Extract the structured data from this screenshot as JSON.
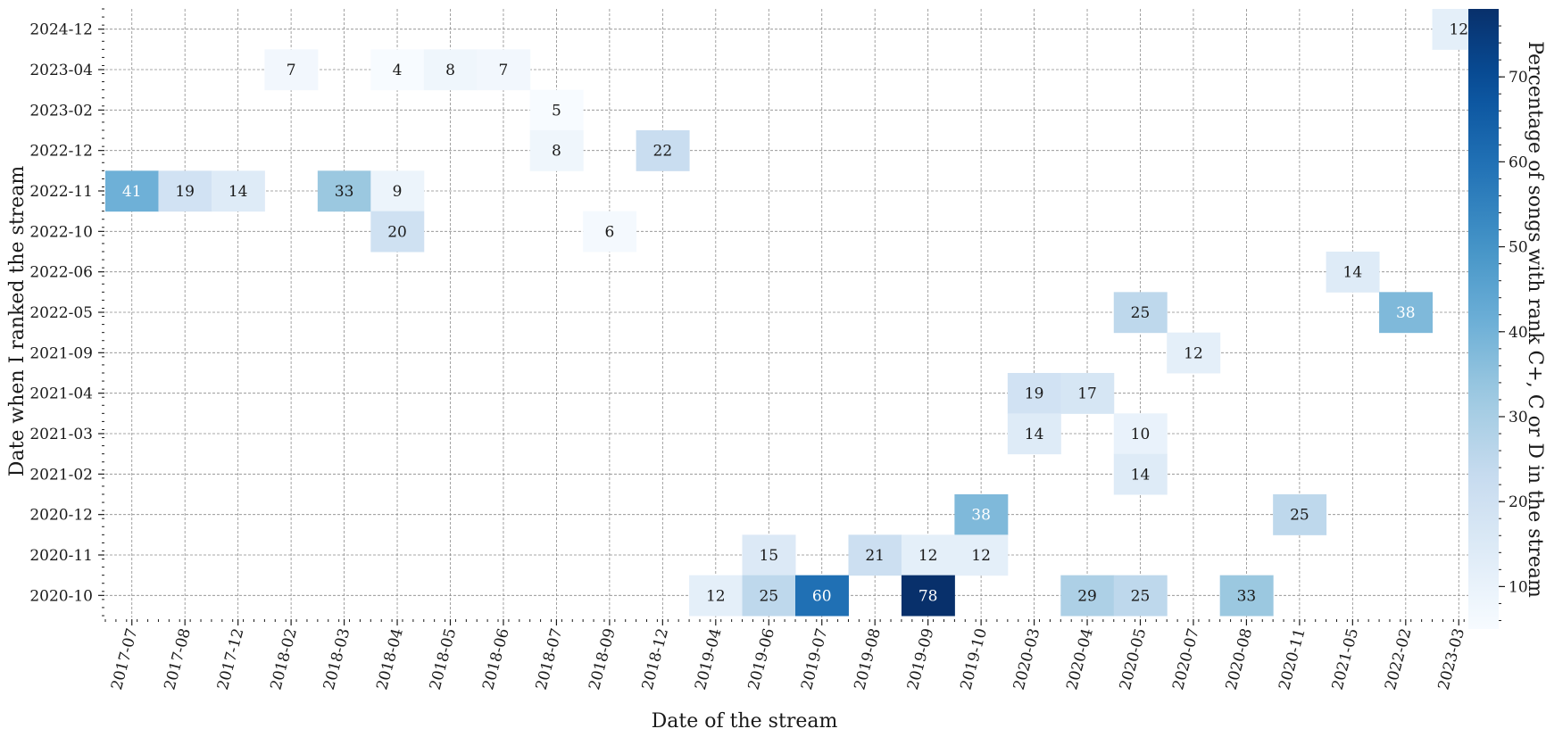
{
  "chart_data": {
    "type": "heatmap",
    "xlabel": "Date of the stream",
    "ylabel": "Date when I ranked the stream",
    "colorbar_label": "Percentage of songs with rank C+, C or D in the stream",
    "colorbar_ticks": [
      10,
      20,
      30,
      40,
      50,
      60,
      70
    ],
    "colorbar_range": [
      5,
      78
    ],
    "colormap": "Blues",
    "grid": true,
    "x_categories": [
      "2017-07",
      "2017-08",
      "2017-12",
      "2018-02",
      "2018-03",
      "2018-04",
      "2018-05",
      "2018-06",
      "2018-07",
      "2018-09",
      "2018-12",
      "2019-04",
      "2019-06",
      "2019-07",
      "2019-08",
      "2019-09",
      "2019-10",
      "2020-03",
      "2020-04",
      "2020-05",
      "2020-07",
      "2020-08",
      "2020-11",
      "2021-05",
      "2022-02",
      "2023-03"
    ],
    "y_categories": [
      "2024-12",
      "2023-04",
      "2023-02",
      "2022-12",
      "2022-11",
      "2022-10",
      "2022-06",
      "2022-05",
      "2021-09",
      "2021-04",
      "2021-03",
      "2021-02",
      "2020-12",
      "2020-11",
      "2020-10"
    ],
    "cells": [
      {
        "y": "2024-12",
        "x": "2023-03",
        "value": 12
      },
      {
        "y": "2023-04",
        "x": "2018-02",
        "value": 7
      },
      {
        "y": "2023-04",
        "x": "2018-04",
        "value": 4
      },
      {
        "y": "2023-04",
        "x": "2018-05",
        "value": 8
      },
      {
        "y": "2023-04",
        "x": "2018-06",
        "value": 7
      },
      {
        "y": "2023-02",
        "x": "2018-07",
        "value": 5
      },
      {
        "y": "2022-12",
        "x": "2018-07",
        "value": 8
      },
      {
        "y": "2022-12",
        "x": "2018-12",
        "value": 22
      },
      {
        "y": "2022-11",
        "x": "2017-07",
        "value": 41
      },
      {
        "y": "2022-11",
        "x": "2017-08",
        "value": 19
      },
      {
        "y": "2022-11",
        "x": "2017-12",
        "value": 14
      },
      {
        "y": "2022-11",
        "x": "2018-03",
        "value": 33
      },
      {
        "y": "2022-11",
        "x": "2018-04",
        "value": 9
      },
      {
        "y": "2022-10",
        "x": "2018-04",
        "value": 20
      },
      {
        "y": "2022-10",
        "x": "2018-09",
        "value": 6
      },
      {
        "y": "2022-06",
        "x": "2021-05",
        "value": 14
      },
      {
        "y": "2022-05",
        "x": "2020-05",
        "value": 25
      },
      {
        "y": "2022-05",
        "x": "2022-02",
        "value": 38
      },
      {
        "y": "2021-09",
        "x": "2020-07",
        "value": 12
      },
      {
        "y": "2021-04",
        "x": "2020-03",
        "value": 19
      },
      {
        "y": "2021-04",
        "x": "2020-04",
        "value": 17
      },
      {
        "y": "2021-03",
        "x": "2020-03",
        "value": 14
      },
      {
        "y": "2021-03",
        "x": "2020-05",
        "value": 10
      },
      {
        "y": "2021-02",
        "x": "2020-05",
        "value": 14
      },
      {
        "y": "2020-12",
        "x": "2019-10",
        "value": 38
      },
      {
        "y": "2020-12",
        "x": "2020-11",
        "value": 25
      },
      {
        "y": "2020-11",
        "x": "2019-06",
        "value": 15
      },
      {
        "y": "2020-11",
        "x": "2019-08",
        "value": 21
      },
      {
        "y": "2020-11",
        "x": "2019-09",
        "value": 12
      },
      {
        "y": "2020-11",
        "x": "2019-10",
        "value": 12
      },
      {
        "y": "2020-10",
        "x": "2019-04",
        "value": 12
      },
      {
        "y": "2020-10",
        "x": "2019-06",
        "value": 25
      },
      {
        "y": "2020-10",
        "x": "2019-07",
        "value": 60
      },
      {
        "y": "2020-10",
        "x": "2019-09",
        "value": 78
      },
      {
        "y": "2020-10",
        "x": "2020-04",
        "value": 29
      },
      {
        "y": "2020-10",
        "x": "2020-05",
        "value": 25
      },
      {
        "y": "2020-10",
        "x": "2020-08",
        "value": 33
      }
    ]
  }
}
